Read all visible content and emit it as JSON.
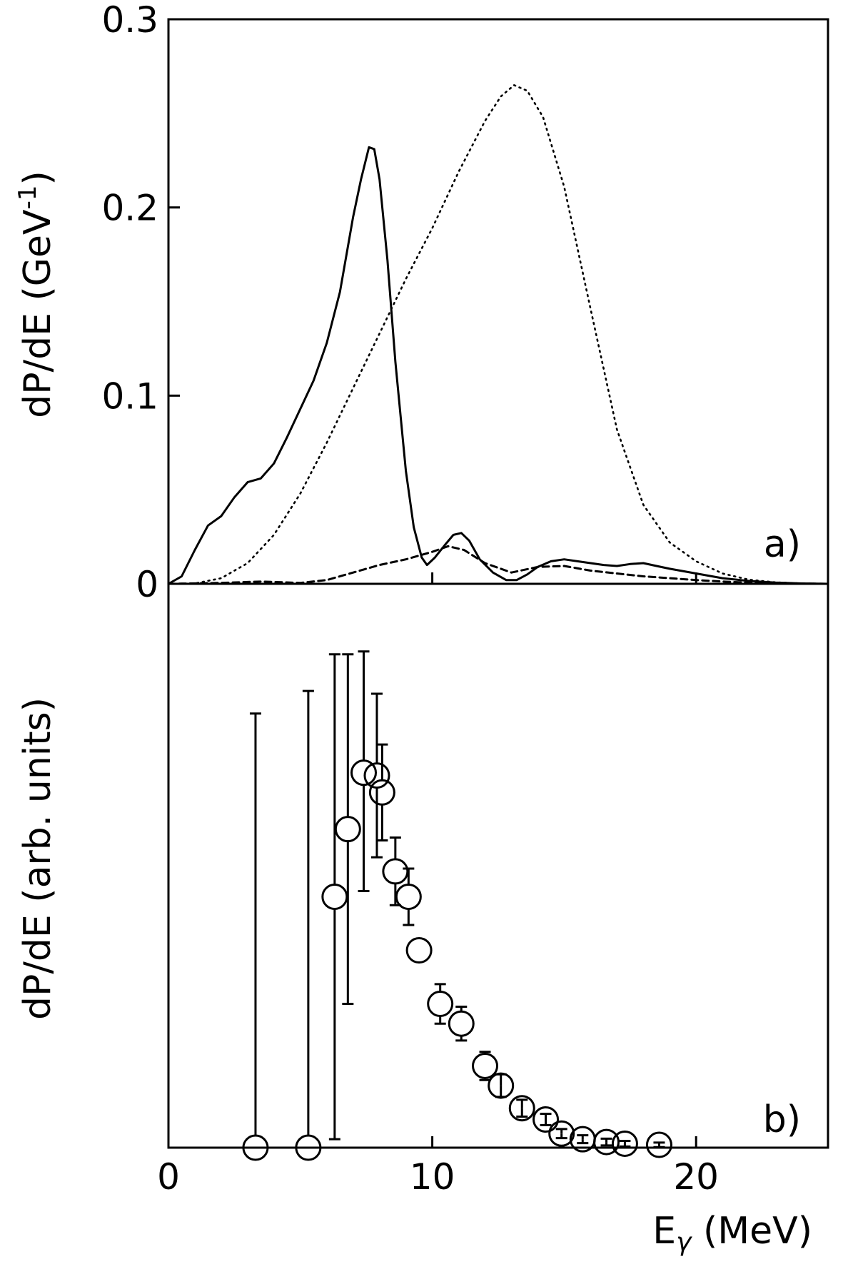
{
  "chart_data": [
    {
      "type": "line",
      "panel_label": "a)",
      "xlim": [
        0,
        25
      ],
      "ylim": [
        0,
        0.3
      ],
      "ylabel": "dP/dE (GeV",
      "ylabel_sup": "-1",
      "ylabel_close": ")",
      "yticks": [
        0,
        0.1,
        0.2,
        0.3
      ],
      "ytick_labels": [
        "0",
        "0.1",
        "0.2",
        "0.3"
      ],
      "xticks": [
        0,
        10,
        20
      ],
      "grid": false,
      "series": [
        {
          "style": "solid",
          "x": [
            0,
            0.5,
            1.0,
            1.5,
            2.0,
            2.5,
            3.0,
            3.5,
            4.0,
            4.5,
            5.0,
            5.5,
            6.0,
            6.5,
            7.0,
            7.3,
            7.6,
            7.8,
            8.0,
            8.3,
            8.6,
            9.0,
            9.3,
            9.6,
            9.8,
            10.1,
            10.5,
            10.8,
            11.1,
            11.4,
            11.8,
            12.3,
            12.8,
            13.2,
            13.6,
            14.0,
            14.5,
            15.0,
            15.5,
            16.0,
            16.5,
            17.0,
            17.5,
            18.0,
            18.5,
            19.0,
            20.0,
            21.0,
            22.0,
            23.0,
            24.0,
            25.0
          ],
          "y": [
            0,
            0.004,
            0.018,
            0.031,
            0.036,
            0.046,
            0.054,
            0.056,
            0.064,
            0.078,
            0.093,
            0.108,
            0.128,
            0.155,
            0.195,
            0.215,
            0.232,
            0.231,
            0.215,
            0.172,
            0.118,
            0.06,
            0.03,
            0.014,
            0.01,
            0.014,
            0.021,
            0.026,
            0.027,
            0.023,
            0.013,
            0.006,
            0.002,
            0.002,
            0.005,
            0.009,
            0.012,
            0.013,
            0.012,
            0.011,
            0.01,
            0.0095,
            0.0105,
            0.011,
            0.0095,
            0.008,
            0.0055,
            0.003,
            0.0015,
            0.0007,
            0.0002,
            0
          ]
        },
        {
          "style": "dotted",
          "x": [
            0,
            1.0,
            2.0,
            3.0,
            4.0,
            5.0,
            6.0,
            7.0,
            8.0,
            9.0,
            10.0,
            11.0,
            12.0,
            12.6,
            13.1,
            13.6,
            14.2,
            15.0,
            16.0,
            17.0,
            18.0,
            19.0,
            20.0,
            21.0,
            22.0,
            23.0,
            24.0,
            25.0
          ],
          "y": [
            0,
            0.0002,
            0.003,
            0.011,
            0.026,
            0.048,
            0.075,
            0.104,
            0.133,
            0.162,
            0.189,
            0.219,
            0.246,
            0.259,
            0.265,
            0.262,
            0.248,
            0.211,
            0.146,
            0.082,
            0.042,
            0.022,
            0.012,
            0.0055,
            0.0022,
            0.0008,
            0.0002,
            0
          ]
        },
        {
          "style": "dashed",
          "x": [
            0,
            2.0,
            3.0,
            3.5,
            4.0,
            5.0,
            6.0,
            7.0,
            8.0,
            9.0,
            10.0,
            10.6,
            11.2,
            12.0,
            13.0,
            14.0,
            15.0,
            16.0,
            17.0,
            18.0,
            19.0,
            20.0,
            21.0,
            22.0,
            23.0,
            24.0,
            25.0
          ],
          "y": [
            0,
            0.0005,
            0.001,
            0.0012,
            0.001,
            0.0005,
            0.002,
            0.006,
            0.01,
            0.013,
            0.017,
            0.02,
            0.018,
            0.011,
            0.006,
            0.009,
            0.0095,
            0.007,
            0.0055,
            0.004,
            0.003,
            0.002,
            0.0012,
            0.0006,
            0.0003,
            0.0001,
            0
          ]
        }
      ]
    },
    {
      "type": "scatter",
      "panel_label": "b)",
      "xlim": [
        0,
        25
      ],
      "ylim": [
        0,
        1.0
      ],
      "xlabel": "E",
      "xlabel_sub": "γ",
      "xlabel_unit": " (MeV)",
      "ylabel": "dP/dE (arb. units)",
      "xticks": [
        0,
        10,
        20
      ],
      "xtick_labels": [
        "0",
        "10",
        "20"
      ],
      "grid": false,
      "points": [
        {
          "x": 3.3,
          "y": 0.0,
          "lo": 0.0,
          "hi": 0.77
        },
        {
          "x": 5.3,
          "y": 0.0,
          "lo": 0.0,
          "hi": 0.81
        },
        {
          "x": 6.3,
          "y": 0.445,
          "lo": 0.015,
          "hi": 0.875
        },
        {
          "x": 6.8,
          "y": 0.565,
          "lo": 0.255,
          "hi": 0.875
        },
        {
          "x": 7.4,
          "y": 0.665,
          "lo": 0.455,
          "hi": 0.88
        },
        {
          "x": 7.9,
          "y": 0.66,
          "lo": 0.515,
          "hi": 0.805
        },
        {
          "x": 8.1,
          "y": 0.63,
          "lo": 0.545,
          "hi": 0.715
        },
        {
          "x": 8.6,
          "y": 0.49,
          "lo": 0.43,
          "hi": 0.55
        },
        {
          "x": 9.1,
          "y": 0.445,
          "lo": 0.395,
          "hi": 0.495
        },
        {
          "x": 9.5,
          "y": 0.35,
          "lo": 0.35,
          "hi": 0.35
        },
        {
          "x": 10.3,
          "y": 0.255,
          "lo": 0.22,
          "hi": 0.29
        },
        {
          "x": 11.1,
          "y": 0.22,
          "lo": 0.19,
          "hi": 0.25
        },
        {
          "x": 12.0,
          "y": 0.145,
          "lo": 0.12,
          "hi": 0.17
        },
        {
          "x": 12.6,
          "y": 0.11,
          "lo": 0.09,
          "hi": 0.13
        },
        {
          "x": 13.4,
          "y": 0.07,
          "lo": 0.055,
          "hi": 0.085
        },
        {
          "x": 14.3,
          "y": 0.05,
          "lo": 0.04,
          "hi": 0.06
        },
        {
          "x": 14.9,
          "y": 0.025,
          "lo": 0.017,
          "hi": 0.033
        },
        {
          "x": 15.7,
          "y": 0.015,
          "lo": 0.008,
          "hi": 0.022
        },
        {
          "x": 16.6,
          "y": 0.01,
          "lo": 0.004,
          "hi": 0.016
        },
        {
          "x": 17.3,
          "y": 0.007,
          "lo": 0.002,
          "hi": 0.012
        },
        {
          "x": 18.6,
          "y": 0.005,
          "lo": 0.001,
          "hi": 0.009
        }
      ]
    }
  ]
}
